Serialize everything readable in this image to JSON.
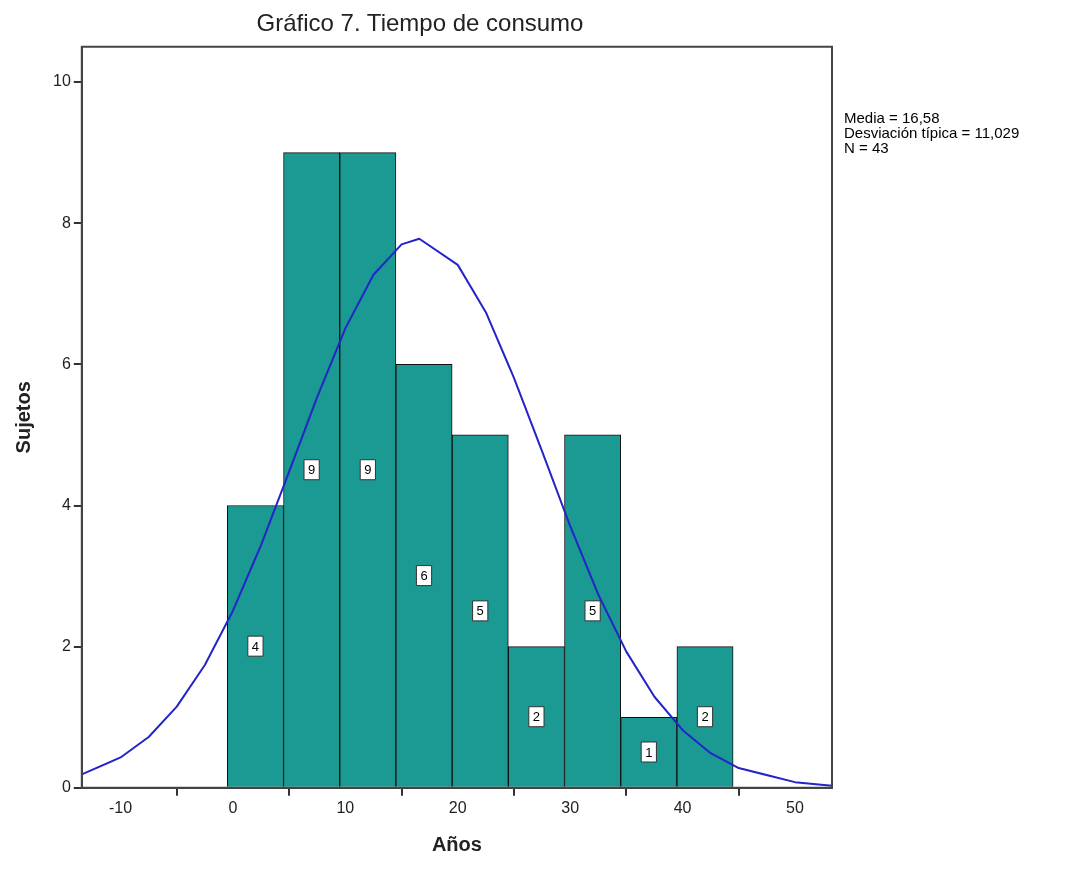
{
  "chart_data": {
    "type": "histogram",
    "title": "Gráfico 7. Tiempo de consumo",
    "xlabel": "Años",
    "ylabel": "Sujetos",
    "bins": [
      -0.5,
      4.5,
      9.5,
      14.5,
      19.5,
      24.5,
      29.5,
      34.5,
      39.5,
      44.5
    ],
    "values": [
      4,
      9,
      9,
      6,
      5,
      2,
      5,
      1,
      2
    ],
    "color": "#1a9a92",
    "value_labels": [
      "4",
      "9",
      "9",
      "6",
      "5",
      "2",
      "5",
      "1",
      "2"
    ],
    "series": [
      {
        "type": "line",
        "color": "#2424c8",
        "x": [
          -13.45,
          -10,
          -7.5,
          -5,
          -2.5,
          0,
          2.5,
          5,
          7.5,
          10,
          12.5,
          15,
          16.58,
          20,
          22.5,
          25,
          27.5,
          30,
          32.5,
          35,
          37.5,
          40,
          42.5,
          45,
          50,
          53.3
        ],
        "values": [
          0.19,
          0.43,
          0.72,
          1.15,
          1.74,
          2.51,
          3.44,
          4.48,
          5.54,
          6.51,
          7.27,
          7.7,
          7.78,
          7.41,
          6.74,
          5.81,
          4.77,
          3.71,
          2.74,
          1.93,
          1.29,
          0.82,
          0.49,
          0.28,
          0.08,
          0.03
        ]
      }
    ],
    "xlim": [
      -13.45,
      53.3
    ],
    "xticks": [
      -10,
      0,
      10,
      20,
      30,
      40,
      50
    ],
    "ylim": [
      0,
      10.5
    ],
    "yticks": [
      0,
      2,
      4,
      6,
      8,
      10
    ],
    "grid": false,
    "legend": false,
    "marker": "none",
    "annotations": [
      "Media = 16,58",
      "Desviación típica = 11,029",
      "N = 43"
    ]
  }
}
